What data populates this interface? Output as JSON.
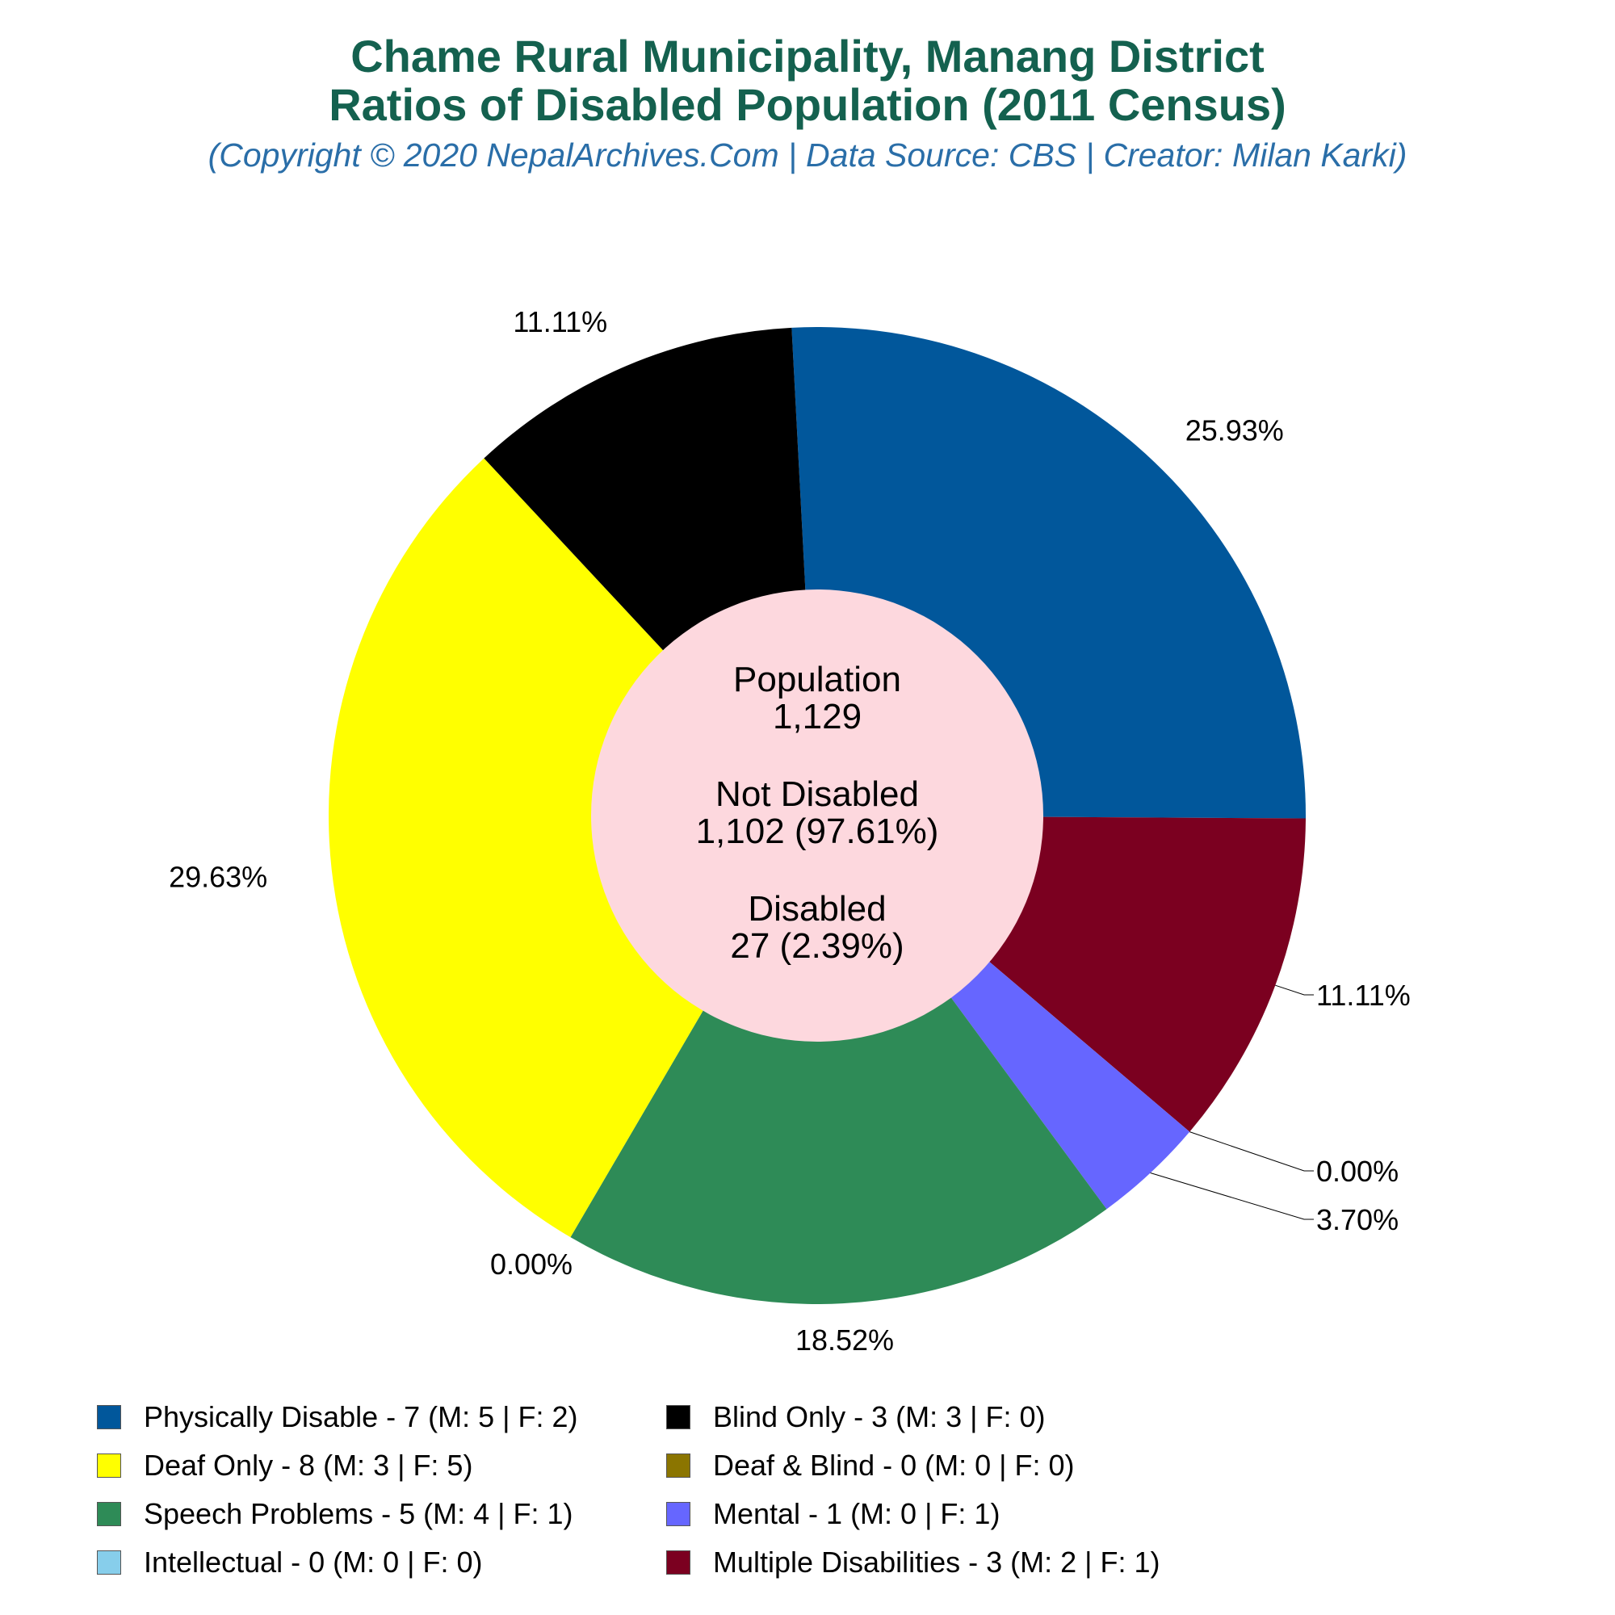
{
  "header": {
    "title_line1": "Chame Rural Municipality, Manang District",
    "title_line2": "Ratios of Disabled Population (2011 Census)",
    "subtitle": "(Copyright © 2020 NepalArchives.Com | Data Source: CBS | Creator: Milan Karki)"
  },
  "center": {
    "population_label": "Population",
    "population_value": "1,129",
    "not_disabled_label": "Not Disabled",
    "not_disabled_value": "1,102 (97.61%)",
    "disabled_label": "Disabled",
    "disabled_value": "27 (2.39%)"
  },
  "chart_data": {
    "type": "pie",
    "donut": true,
    "slices": [
      {
        "label": "Physically Disable - 7 (M: 5 | F: 2)",
        "value": 7,
        "percent": "25.93%",
        "color": "#01579b"
      },
      {
        "label": "Multiple Disabilities - 3 (M: 2 | F: 1)",
        "value": 3,
        "percent": "11.11%",
        "color": "#7b0020"
      },
      {
        "label": "Intellectual - 0 (M: 0 | F: 0)",
        "value": 0,
        "percent": "0.00%",
        "color": "#87ceeb"
      },
      {
        "label": "Mental - 1 (M: 0 | F: 1)",
        "value": 1,
        "percent": "3.70%",
        "color": "#6666ff"
      },
      {
        "label": "Speech Problems - 5 (M: 4 | F: 1)",
        "value": 5,
        "percent": "18.52%",
        "color": "#2e8b57"
      },
      {
        "label": "Deaf & Blind - 0 (M: 0 | F: 0)",
        "value": 0,
        "percent": "0.00%",
        "color": "#8b7500"
      },
      {
        "label": "Deaf Only - 8 (M: 3 | F: 5)",
        "value": 8,
        "percent": "29.63%",
        "color": "#ffff00"
      },
      {
        "label": "Blind Only - 3 (M: 3 | F: 0)",
        "value": 3,
        "percent": "11.11%",
        "color": "#000000"
      }
    ],
    "legend": [
      {
        "label": "Physically Disable - 7 (M: 5 | F: 2)",
        "color": "#01579b"
      },
      {
        "label": "Blind Only - 3 (M: 3 | F: 0)",
        "color": "#000000"
      },
      {
        "label": "Deaf Only - 8 (M: 3 | F: 5)",
        "color": "#ffff00"
      },
      {
        "label": "Deaf & Blind - 0 (M: 0 | F: 0)",
        "color": "#8b7500"
      },
      {
        "label": "Speech Problems - 5 (M: 4 | F: 1)",
        "color": "#2e8b57"
      },
      {
        "label": "Mental - 1 (M: 0 | F: 1)",
        "color": "#6666ff"
      },
      {
        "label": "Intellectual - 0 (M: 0 | F: 0)",
        "color": "#87ceeb"
      },
      {
        "label": "Multiple Disabilities - 3 (M: 2 | F: 1)",
        "color": "#7b0020"
      }
    ],
    "legend_placement": "bottom",
    "center_fill": "#fdd8de"
  }
}
